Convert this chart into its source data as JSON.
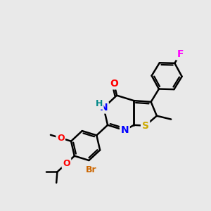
{
  "background_color": "#e9e9e9",
  "atom_colors": {
    "C": "#000000",
    "N": "#0000ff",
    "O": "#ff0000",
    "S": "#ccaa00",
    "F": "#ff00ff",
    "Br": "#cc6600",
    "H": "#008888"
  },
  "bond_color": "#000000",
  "bond_width": 1.8
}
